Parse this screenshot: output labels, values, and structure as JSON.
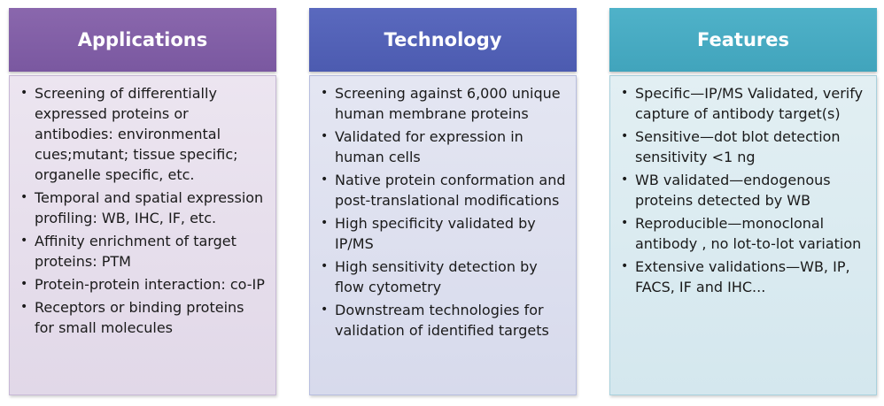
{
  "columns": [
    {
      "title": "Applications",
      "items": [
        "Screening of differentially expressed proteins or antibodies: environmental cues;mutant; tissue specific; organelle specific, etc.",
        "Temporal and spatial expression profiling: WB, IHC, IF, etc.",
        "Affinity enrichment of target proteins: PTM",
        "Protein-protein interaction: co-IP",
        "Receptors or binding proteins for small molecules"
      ]
    },
    {
      "title": "Technology",
      "items": [
        "Screening against 6,000 unique human membrane proteins",
        "Validated for expression in human cells",
        "Native protein conformation and post-translational modifications",
        "High specificity validated by IP/MS",
        "High sensitivity detection by flow cytometry",
        "Downstream technologies for validation of identified targets"
      ]
    },
    {
      "title": "Features",
      "items": [
        "Specific—IP/MS Validated, verify capture of antibody target(s)",
        "Sensitive—dot blot detection sensitivity <1 ng",
        "WB validated—endogenous proteins detected by WB",
        "Reproducible—monoclonal antibody , no lot-to-lot variation",
        "Extensive validations—WB, IP, FACS, IF and IHC..."
      ]
    }
  ],
  "colors": {
    "applications_header": "#7f5ea6",
    "technology_header": "#5262b7",
    "features_header": "#47abc3"
  }
}
